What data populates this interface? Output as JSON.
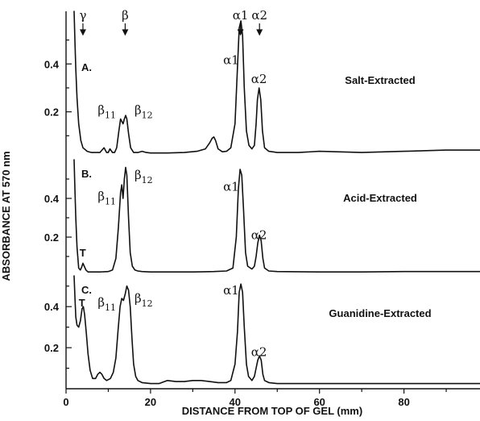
{
  "chart_data": {
    "type": "line",
    "xlabel": "DISTANCE FROM TOP OF GEL (mm)",
    "ylabel": "ABSORBANCE AT 570 nm",
    "xlim": [
      0,
      98
    ],
    "x_ticks": [
      "0",
      "20",
      "40",
      "60",
      "80"
    ],
    "y_tick_labels": [
      "0.2",
      "0.4"
    ],
    "top_markers": [
      {
        "label": "γ",
        "x": 4
      },
      {
        "label": "β",
        "x": 14
      },
      {
        "label": "α1",
        "x": 41.3
      },
      {
        "label": "α2",
        "x": 45.8
      }
    ],
    "panels": [
      {
        "letter": "A.",
        "name": "Salt-Extracted",
        "ylim": [
          0,
          0.62
        ],
        "y_ticks": [
          0.2,
          0.4
        ],
        "peak_labels": [
          {
            "text": "β",
            "sub": "11",
            "x": 7.5,
            "y": 0.19
          },
          {
            "text": "β",
            "sub": "12",
            "x": 16.2,
            "y": 0.19
          },
          {
            "text": "α1",
            "x": 37.2,
            "y": 0.4
          },
          {
            "text": "α2",
            "x": 43.8,
            "y": 0.32
          }
        ],
        "x": [
          1.9,
          2.1,
          2.3,
          2.6,
          3.0,
          3.5,
          4.0,
          5.0,
          6.0,
          7.0,
          8.0,
          9.0,
          9.6,
          10.0,
          10.4,
          11.0,
          11.5,
          12.0,
          12.5,
          12.9,
          13.2,
          13.5,
          13.8,
          14.1,
          14.4,
          14.8,
          15.3,
          16.0,
          17.0,
          18.0,
          19.0,
          20.0,
          24.0,
          28.0,
          31.0,
          33.0,
          34.0,
          34.6,
          35.0,
          35.4,
          36.0,
          37.0,
          38.0,
          39.0,
          40.0,
          40.5,
          41.0,
          41.4,
          41.8,
          42.2,
          42.7,
          43.3,
          44.0,
          44.6,
          45.0,
          45.3,
          45.7,
          46.1,
          46.5,
          47.0,
          48.0,
          50.0,
          55.0,
          60.0,
          70.0,
          80.0,
          90.0,
          98.0
        ],
        "y": [
          0.62,
          0.5,
          0.38,
          0.26,
          0.15,
          0.08,
          0.05,
          0.035,
          0.03,
          0.03,
          0.03,
          0.05,
          0.03,
          0.03,
          0.045,
          0.03,
          0.03,
          0.05,
          0.12,
          0.17,
          0.16,
          0.15,
          0.17,
          0.185,
          0.17,
          0.11,
          0.05,
          0.03,
          0.03,
          0.035,
          0.03,
          0.028,
          0.028,
          0.03,
          0.035,
          0.045,
          0.07,
          0.09,
          0.095,
          0.08,
          0.045,
          0.033,
          0.035,
          0.05,
          0.15,
          0.35,
          0.55,
          0.58,
          0.52,
          0.3,
          0.12,
          0.06,
          0.045,
          0.06,
          0.15,
          0.25,
          0.3,
          0.25,
          0.12,
          0.05,
          0.035,
          0.03,
          0.03,
          0.035,
          0.03,
          0.035,
          0.04,
          0.04
        ]
      },
      {
        "letter": "B.",
        "name": "Acid-Extracted",
        "ylim": [
          0,
          0.6
        ],
        "y_ticks": [
          0.2,
          0.4
        ],
        "peak_labels": [
          {
            "text": "T",
            "x": 3.2,
            "y": 0.1
          },
          {
            "text": "β",
            "sub": "11",
            "x": 7.5,
            "y": 0.39
          },
          {
            "text": "β",
            "sub": "12",
            "x": 16.2,
            "y": 0.5
          },
          {
            "text": "α1",
            "x": 37.2,
            "y": 0.44
          },
          {
            "text": "α2",
            "x": 43.8,
            "y": 0.19
          }
        ],
        "x": [
          1.9,
          2.1,
          2.3,
          2.6,
          3.0,
          3.4,
          3.7,
          4.0,
          4.3,
          4.7,
          5.2,
          6.0,
          8.0,
          10.0,
          11.0,
          11.8,
          12.4,
          12.9,
          13.2,
          13.5,
          13.8,
          14.1,
          14.4,
          14.8,
          15.2,
          15.7,
          16.3,
          17.0,
          18.0,
          20.0,
          25.0,
          30.0,
          35.0,
          38.0,
          39.5,
          40.3,
          40.8,
          41.2,
          41.6,
          42.0,
          42.5,
          43.0,
          44.0,
          44.6,
          45.0,
          45.4,
          45.8,
          46.2,
          46.6,
          47.0,
          48.0,
          50.0,
          60.0,
          70.0,
          80.0,
          90.0,
          98.0
        ],
        "y": [
          0.6,
          0.45,
          0.3,
          0.15,
          0.04,
          0.03,
          0.045,
          0.065,
          0.05,
          0.03,
          0.02,
          0.02,
          0.02,
          0.022,
          0.03,
          0.09,
          0.25,
          0.43,
          0.47,
          0.4,
          0.5,
          0.56,
          0.52,
          0.3,
          0.12,
          0.05,
          0.03,
          0.025,
          0.022,
          0.02,
          0.02,
          0.02,
          0.022,
          0.025,
          0.04,
          0.2,
          0.45,
          0.55,
          0.52,
          0.35,
          0.12,
          0.05,
          0.035,
          0.05,
          0.1,
          0.17,
          0.21,
          0.18,
          0.09,
          0.04,
          0.025,
          0.022,
          0.02,
          0.02,
          0.022,
          0.022,
          0.022
        ]
      },
      {
        "letter": "C.",
        "name": "Guanidine-Extracted",
        "ylim": [
          0,
          0.55
        ],
        "y_ticks": [
          0.2,
          0.4
        ],
        "peak_labels": [
          {
            "text": "T",
            "x": 3.0,
            "y": 0.4
          },
          {
            "text": "β",
            "sub": "11",
            "x": 7.5,
            "y": 0.4
          },
          {
            "text": "β",
            "sub": "12",
            "x": 16.2,
            "y": 0.42
          },
          {
            "text": "α1",
            "x": 37.2,
            "y": 0.46
          },
          {
            "text": "α2",
            "x": 43.8,
            "y": 0.16
          }
        ],
        "x": [
          1.9,
          2.1,
          2.3,
          2.6,
          3.0,
          3.4,
          3.8,
          4.1,
          4.4,
          4.8,
          5.2,
          5.7,
          6.3,
          7.0,
          7.5,
          8.0,
          8.5,
          9.0,
          9.6,
          10.5,
          11.2,
          11.8,
          12.3,
          12.8,
          13.2,
          13.6,
          14.0,
          14.4,
          14.8,
          15.2,
          15.6,
          16.0,
          16.5,
          17.0,
          18.0,
          20.0,
          22.0,
          24.0,
          26.0,
          28.0,
          30.0,
          32.0,
          34.0,
          36.0,
          38.0,
          39.0,
          40.0,
          40.6,
          41.0,
          41.4,
          41.8,
          42.2,
          42.7,
          43.2,
          44.0,
          44.6,
          45.0,
          45.4,
          45.8,
          46.2,
          46.6,
          47.0,
          48.0,
          50.0,
          60.0,
          70.0,
          80.0,
          90.0,
          98.0
        ],
        "y": [
          0.55,
          0.45,
          0.35,
          0.31,
          0.3,
          0.33,
          0.39,
          0.4,
          0.36,
          0.27,
          0.17,
          0.09,
          0.05,
          0.05,
          0.07,
          0.08,
          0.07,
          0.05,
          0.04,
          0.05,
          0.08,
          0.15,
          0.28,
          0.4,
          0.44,
          0.43,
          0.46,
          0.5,
          0.48,
          0.4,
          0.25,
          0.12,
          0.06,
          0.04,
          0.03,
          0.025,
          0.025,
          0.04,
          0.035,
          0.035,
          0.04,
          0.04,
          0.035,
          0.03,
          0.03,
          0.04,
          0.12,
          0.28,
          0.47,
          0.51,
          0.47,
          0.3,
          0.12,
          0.06,
          0.04,
          0.06,
          0.1,
          0.14,
          0.16,
          0.14,
          0.07,
          0.04,
          0.03,
          0.025,
          0.025,
          0.025,
          0.025,
          0.025,
          0.025
        ]
      }
    ]
  }
}
